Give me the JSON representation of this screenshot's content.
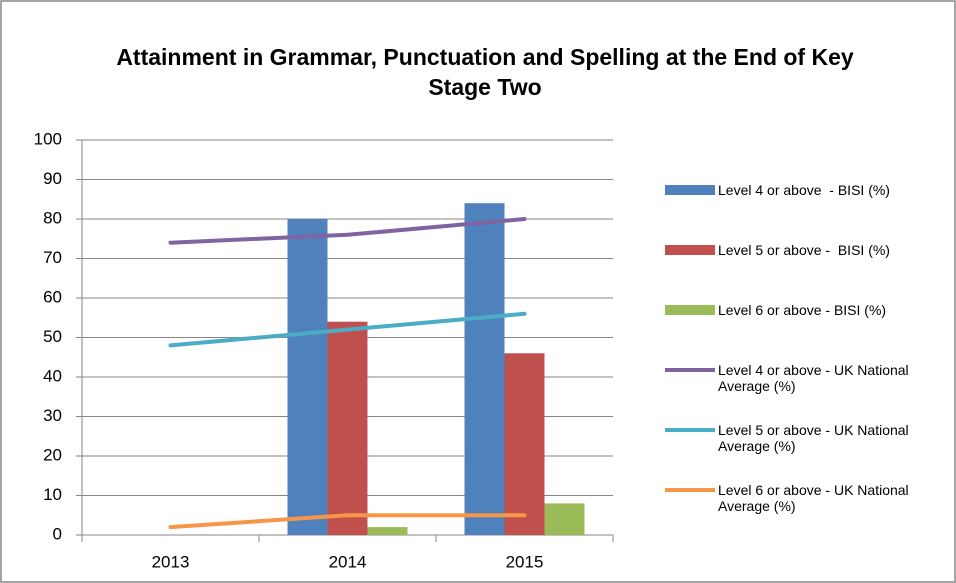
{
  "chart_data": {
    "type": "bar",
    "title": "Attainment in Grammar, Punctuation and Spelling at the End of Key Stage Two",
    "categories": [
      "2013",
      "2014",
      "2015"
    ],
    "series": [
      {
        "name": "Level 4 or above  - BISI (%)",
        "type": "bar",
        "color": "#4f81bd",
        "values": [
          null,
          80,
          84
        ]
      },
      {
        "name": "Level 5 or above -  BISI (%)",
        "type": "bar",
        "color": "#c0504d",
        "values": [
          null,
          54,
          46
        ]
      },
      {
        "name": "Level 6 or above - BISI (%)",
        "type": "bar",
        "color": "#9bbb59",
        "values": [
          null,
          2,
          8
        ]
      },
      {
        "name": "Level 4 or above - UK National Average (%)",
        "type": "line",
        "color": "#8064a2",
        "values": [
          74,
          76,
          80
        ]
      },
      {
        "name": "Level 5 or above - UK National Average (%)",
        "type": "line",
        "color": "#4bacc6",
        "values": [
          48,
          52,
          56
        ]
      },
      {
        "name": "Level 6 or above - UK National Average (%)",
        "type": "line",
        "color": "#f79646",
        "values": [
          2,
          5,
          5
        ]
      }
    ],
    "ylim": [
      0,
      100
    ],
    "yticks": [
      0,
      10,
      20,
      30,
      40,
      50,
      60,
      70,
      80,
      90,
      100
    ],
    "grid": true,
    "legend": "right"
  }
}
